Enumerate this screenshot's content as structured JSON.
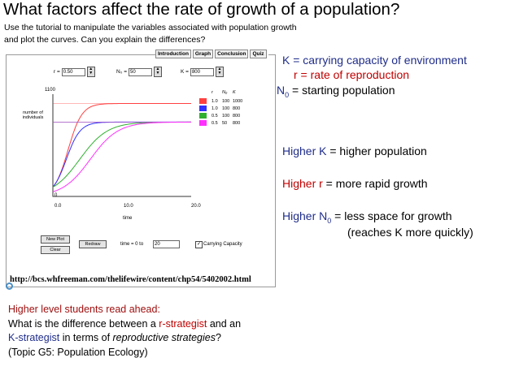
{
  "title": "What factors affect the rate of growth of a population?",
  "intro": "Use the tutorial to manipulate the variables associated with population growth and plot the curves. Can you explain the differences?",
  "applet": {
    "tabs": [
      "Introduction",
      "Graph",
      "Conclusion",
      "Quiz"
    ],
    "controls": {
      "r_label": "r =",
      "r_value": "0.50",
      "n0_label": "N₀ =",
      "n0_value": "50",
      "k_label": "K =",
      "k_value": "800"
    },
    "y_axis": {
      "label": "number of individuals",
      "max_label": "1100",
      "min_label": "0"
    },
    "x_axis": {
      "label": "time",
      "ticks": [
        "0.0",
        "10.0",
        "20.0"
      ]
    },
    "legend": {
      "headers": [
        "r",
        "N₀",
        "K"
      ],
      "rows": [
        {
          "color": "#ff4040",
          "r": "1.0",
          "n0": "100",
          "k": "1000"
        },
        {
          "color": "#3030ff",
          "r": "1.0",
          "n0": "100",
          "k": "800"
        },
        {
          "color": "#30b030",
          "r": "0.5",
          "n0": "100",
          "k": "800"
        },
        {
          "color": "#ff30ff",
          "r": "0.5",
          "n0": "50",
          "k": "800"
        }
      ]
    },
    "buttons": {
      "new_plot": "New Plot",
      "clear": "Clear",
      "redraw": "Redraw"
    },
    "time_label": "time = 0 to",
    "time_value": "20",
    "carrying_capacity_label": "Carrying Capacity",
    "url": "http://bcs.whfreeman.com/thelifewire/content/chp54/5402002.html"
  },
  "chart_data": {
    "type": "line",
    "xlim": [
      0,
      20
    ],
    "ylim": [
      0,
      1100
    ],
    "x_ticks": [
      "0.0",
      "10.0",
      "20.0"
    ],
    "ylabel": "number of individuals",
    "xlabel": "time",
    "series": [
      {
        "color": "#ff4040",
        "r": 1.0,
        "n0": 100,
        "k": 1000
      },
      {
        "color": "#3030ff",
        "r": 1.0,
        "n0": 100,
        "k": 800
      },
      {
        "color": "#30b030",
        "r": 0.5,
        "n0": 100,
        "k": 800
      },
      {
        "color": "#ff30ff",
        "r": 0.5,
        "n0": 50,
        "k": 800
      }
    ]
  },
  "definitions": {
    "k": "K = carrying capacity of environment",
    "r": "r = rate of reproduction",
    "n0_prefix": "N",
    "n0_sub": "0",
    "n0_rest": " = starting population"
  },
  "effects": {
    "k_blue": "Higher K",
    "k_rest": " = higher population",
    "r_red": "Higher r",
    "r_rest": " = more rapid growth",
    "n0_green": "Higher N",
    "n0_sub": "0",
    "n0_rest": " = less space for growth",
    "n0_line2": "(reaches K more quickly)"
  },
  "ahead": {
    "line1": "Higher level students read ahead:",
    "line2_a": "What is the difference between a ",
    "line2_r": "r-strategist",
    "line2_b": " and an",
    "line3_k": "K-strategist",
    "line3_b": " in terms of ",
    "line3_i": "reproductive strategies",
    "line3_c": "?",
    "line4": "(Topic G5: Population Ecology)"
  }
}
